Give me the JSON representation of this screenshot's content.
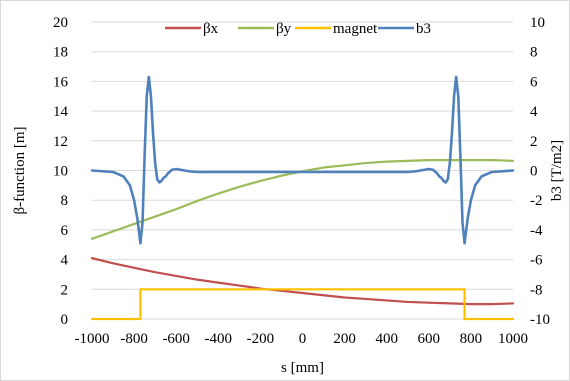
{
  "chart_data": {
    "type": "line",
    "xlabel": "s [mm]",
    "ylabel": "β-function [m]",
    "y2label": "b3 [T/m2]",
    "xlim": [
      -1000,
      1000
    ],
    "ylim": [
      0,
      20
    ],
    "y2lim": [
      -10,
      10
    ],
    "xticks": [
      -1000,
      -800,
      -600,
      -400,
      -200,
      0,
      200,
      400,
      600,
      800,
      1000
    ],
    "yticks": [
      0,
      2,
      4,
      6,
      8,
      10,
      12,
      14,
      16,
      18,
      20
    ],
    "y2ticks": [
      -10,
      -8,
      -6,
      -4,
      -2,
      0,
      2,
      4,
      6,
      8,
      10
    ],
    "grid": true,
    "legend_position": "top",
    "series": [
      {
        "name": "βx",
        "axis": "left",
        "color": "#c0504d",
        "x": [
          -1000,
          -900,
          -800,
          -700,
          -600,
          -500,
          -400,
          -300,
          -200,
          -100,
          0,
          100,
          200,
          300,
          400,
          500,
          600,
          700,
          800,
          900,
          1000
        ],
        "y": [
          4.1,
          3.75,
          3.45,
          3.15,
          2.9,
          2.65,
          2.45,
          2.25,
          2.05,
          1.9,
          1.75,
          1.6,
          1.45,
          1.35,
          1.25,
          1.15,
          1.1,
          1.05,
          1.0,
          1.0,
          1.05
        ]
      },
      {
        "name": "βy",
        "axis": "left",
        "color": "#9bbb59",
        "x": [
          -1000,
          -900,
          -800,
          -700,
          -600,
          -500,
          -400,
          -300,
          -200,
          -100,
          0,
          100,
          200,
          300,
          400,
          500,
          600,
          700,
          800,
          900,
          1000
        ],
        "y": [
          5.4,
          5.9,
          6.4,
          6.9,
          7.4,
          7.95,
          8.45,
          8.9,
          9.3,
          9.65,
          9.95,
          10.2,
          10.35,
          10.5,
          10.6,
          10.65,
          10.7,
          10.7,
          10.7,
          10.7,
          10.65
        ]
      },
      {
        "name": "magnet",
        "axis": "left",
        "color": "#ffc000",
        "x": [
          -1000,
          -770,
          -770,
          770,
          770,
          1000
        ],
        "y": [
          0,
          0,
          2,
          2,
          0,
          0
        ]
      },
      {
        "name": "b3",
        "axis": "right",
        "color": "#4f81bd",
        "x": [
          -1000,
          -900,
          -850,
          -820,
          -800,
          -785,
          -770,
          -760,
          -750,
          -740,
          -730,
          -720,
          -710,
          -700,
          -690,
          -680,
          -670,
          -660,
          -650,
          -640,
          -620,
          -600,
          -580,
          -560,
          -540,
          -500,
          -400,
          -200,
          0,
          200,
          400,
          500,
          540,
          560,
          580,
          600,
          620,
          640,
          650,
          660,
          670,
          680,
          690,
          700,
          710,
          720,
          730,
          740,
          750,
          760,
          770,
          785,
          800,
          820,
          850,
          900,
          1000
        ],
        "y": [
          0,
          -0.1,
          -0.4,
          -1.0,
          -2.0,
          -3.2,
          -4.9,
          -3.5,
          1.0,
          5.0,
          6.3,
          5.0,
          2.5,
          0.5,
          -0.6,
          -0.8,
          -0.7,
          -0.5,
          -0.4,
          -0.2,
          0.05,
          0.1,
          0.05,
          0,
          -0.05,
          -0.1,
          -0.1,
          -0.1,
          -0.1,
          -0.1,
          -0.1,
          -0.1,
          -0.05,
          0,
          0.05,
          0.1,
          0.05,
          -0.2,
          -0.4,
          -0.5,
          -0.7,
          -0.8,
          -0.6,
          0.5,
          2.5,
          5.0,
          6.3,
          5.0,
          1.0,
          -3.5,
          -4.9,
          -3.2,
          -2.0,
          -1.0,
          -0.4,
          -0.1,
          0
        ]
      }
    ]
  }
}
